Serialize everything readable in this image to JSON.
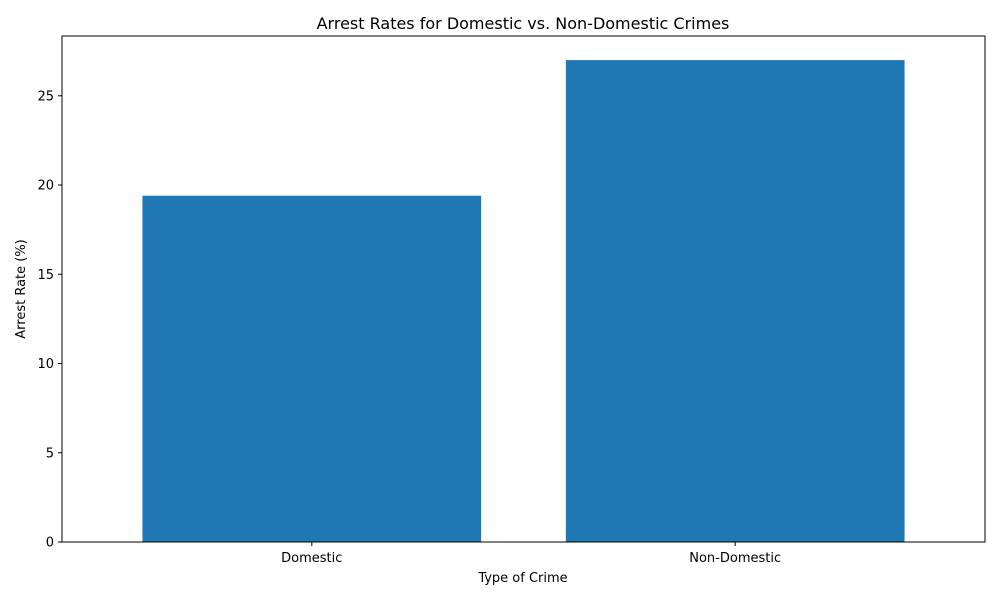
{
  "chart_data": {
    "type": "bar",
    "title": "Arrest Rates for Domestic vs. Non-Domestic Crimes",
    "xlabel": "Type of Crime",
    "ylabel": "Arrest Rate (%)",
    "categories": [
      "Domestic",
      "Non-Domestic"
    ],
    "values": [
      19.4,
      27.0
    ],
    "ylim": [
      0,
      28.35
    ],
    "yticks": [
      0,
      5,
      10,
      15,
      20,
      25
    ],
    "bar_color": "#1f77b4",
    "grid": false,
    "legend": "none"
  }
}
